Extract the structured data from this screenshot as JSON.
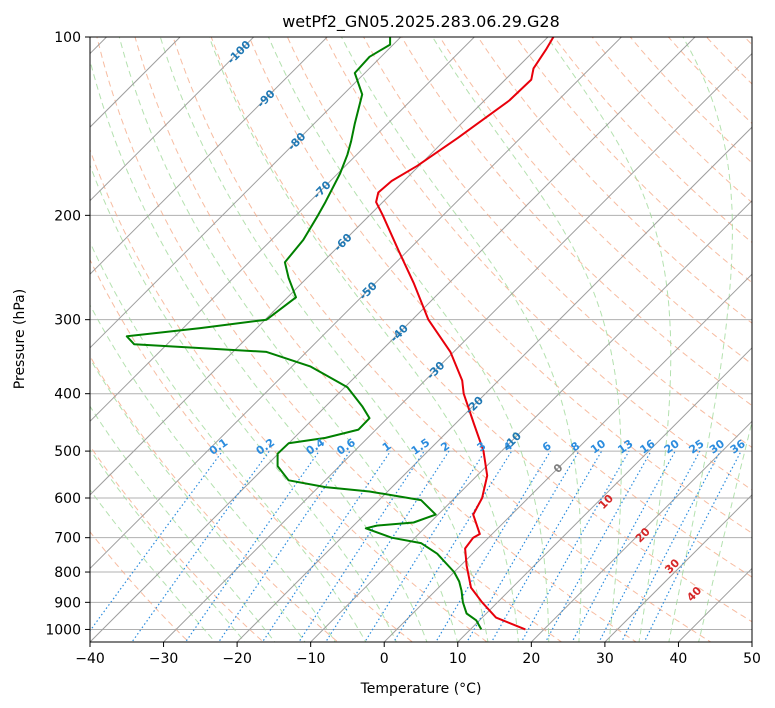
{
  "chart_data": {
    "type": "line",
    "title": "wetPf2_GN05.2025.283.06.29.G28",
    "xlabel": "Temperature (°C)",
    "ylabel": "Pressure (hPa)",
    "xlim": [
      -40,
      50
    ],
    "ylim": [
      1050,
      100
    ],
    "y_scale": "log",
    "x_ticks": [
      -40,
      -30,
      -20,
      -10,
      0,
      10,
      20,
      30,
      40,
      50
    ],
    "y_ticks": [
      100,
      200,
      300,
      400,
      500,
      600,
      700,
      800,
      900,
      1000
    ],
    "grid": true,
    "colors": {
      "temperature": "#e8000b",
      "dewpoint": "#008000",
      "isotherm": "#9e9e9e",
      "dry_adiabat": "#f4a582",
      "moist_adiabat": "#a1d99b",
      "mixing_ratio": "#2b8cde",
      "isotherm_label": "#1f78b4",
      "moist_label": "#d62728"
    },
    "temperature_profile": [
      [
        19.2,
        1000
      ],
      [
        15.2,
        955
      ],
      [
        13.3,
        900
      ],
      [
        11.8,
        850
      ],
      [
        11.2,
        780
      ],
      [
        11.0,
        730
      ],
      [
        12.1,
        700
      ],
      [
        13.0,
        690
      ],
      [
        12.1,
        640
      ],
      [
        13.3,
        600
      ],
      [
        14.0,
        550
      ],
      [
        13.5,
        500
      ],
      [
        12.2,
        450
      ],
      [
        10.8,
        400
      ],
      [
        10.6,
        380
      ],
      [
        9.0,
        340
      ],
      [
        6.0,
        300
      ],
      [
        4.0,
        260
      ],
      [
        2.0,
        230
      ],
      [
        -0.2,
        200
      ],
      [
        -1.1,
        190
      ],
      [
        -0.8,
        183
      ],
      [
        1.0,
        175
      ],
      [
        4.5,
        165
      ],
      [
        10.0,
        148
      ],
      [
        17.0,
        128
      ],
      [
        20.0,
        118
      ],
      [
        20.3,
        113
      ],
      [
        22.0,
        105
      ],
      [
        23.0,
        100
      ]
    ],
    "dewpoint_profile": [
      [
        13.2,
        1000
      ],
      [
        12.5,
        965
      ],
      [
        11.2,
        940
      ],
      [
        10.7,
        900
      ],
      [
        10.5,
        860
      ],
      [
        10.2,
        830
      ],
      [
        9.5,
        800
      ],
      [
        7.2,
        745
      ],
      [
        5.0,
        715
      ],
      [
        1.0,
        700
      ],
      [
        -2.5,
        675
      ],
      [
        -1.0,
        668
      ],
      [
        4.0,
        660
      ],
      [
        7.0,
        640
      ],
      [
        5.0,
        605
      ],
      [
        -2.0,
        585
      ],
      [
        -8.0,
        575
      ],
      [
        -13.0,
        560
      ],
      [
        -14.5,
        530
      ],
      [
        -14.5,
        505
      ],
      [
        -13.0,
        485
      ],
      [
        -8.0,
        475
      ],
      [
        -3.5,
        460
      ],
      [
        -2.0,
        440
      ],
      [
        -3.0,
        420
      ],
      [
        -5.0,
        390
      ],
      [
        -10.0,
        360
      ],
      [
        -16.0,
        340
      ],
      [
        -34.0,
        330
      ],
      [
        -35.0,
        320
      ],
      [
        -25.0,
        310
      ],
      [
        -16.0,
        300
      ],
      [
        -12.0,
        275
      ],
      [
        -13.0,
        255
      ],
      [
        -13.5,
        240
      ],
      [
        -11.0,
        220
      ],
      [
        -9.0,
        200
      ],
      [
        -8.0,
        190
      ],
      [
        -6.0,
        170
      ],
      [
        -5.0,
        158
      ],
      [
        -4.5,
        150
      ],
      [
        -4.0,
        140
      ],
      [
        -3.0,
        125
      ],
      [
        -4.0,
        115
      ],
      [
        -2.0,
        108
      ],
      [
        0.8,
        103
      ],
      [
        0.8,
        100
      ]
    ],
    "isotherm_labels": [
      "-100",
      "-90",
      "-80",
      "-70",
      "-60",
      "-50",
      "-40",
      "-30",
      "-20",
      "-10"
    ],
    "mixing_ratio_labels": [
      "0.1",
      "0.2",
      "0.4",
      "0.6",
      "1",
      "1.5",
      "2",
      "3",
      "4",
      "6",
      "8",
      "10",
      "13",
      "16",
      "20",
      "25",
      "30",
      "36"
    ],
    "moist_adiabat_labels": [
      "0",
      "10",
      "20",
      "30",
      "40"
    ]
  }
}
